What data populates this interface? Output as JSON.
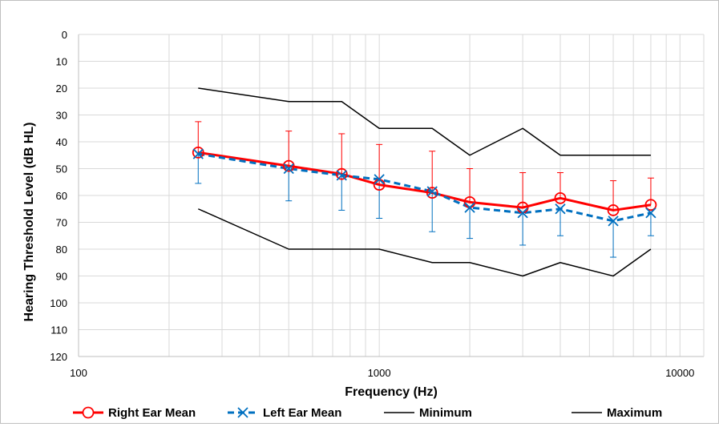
{
  "chart_data": {
    "type": "line",
    "title": "",
    "xlabel": "Frequency (Hz)",
    "ylabel": "Hearing Threshold Level (dB HL)",
    "x_scale": "log",
    "xlim": [
      100,
      12000
    ],
    "ylim": [
      120,
      0
    ],
    "y_axis_inverted": true,
    "grid": true,
    "legend_position": "bottom",
    "x_tick_labels": [
      "100",
      "1000",
      "10000"
    ],
    "x_tick_values": [
      100,
      1000,
      10000
    ],
    "y_tick_labels": [
      "0",
      "10",
      "20",
      "30",
      "40",
      "50",
      "60",
      "70",
      "80",
      "90",
      "100",
      "110",
      "120"
    ],
    "y_tick_values": [
      0,
      10,
      20,
      30,
      40,
      50,
      60,
      70,
      80,
      90,
      100,
      110,
      120
    ],
    "series": [
      {
        "name": "Right Ear Mean",
        "color": "#ff0000",
        "style": "solid",
        "marker": "circle",
        "x": [
          250,
          500,
          750,
          1000,
          1500,
          2000,
          3000,
          4000,
          6000,
          8000
        ],
        "y": [
          44,
          49,
          52,
          56,
          59,
          62.5,
          64.5,
          61,
          65.5,
          63.5
        ],
        "error_upper": [
          32.5,
          36,
          37,
          41,
          43.5,
          50,
          51.5,
          51.5,
          54.5,
          53.5
        ]
      },
      {
        "name": "Left Ear Mean",
        "color": "#0070c0",
        "style": "dashed",
        "marker": "x",
        "x": [
          250,
          500,
          750,
          1000,
          1500,
          2000,
          3000,
          4000,
          6000,
          8000
        ],
        "y": [
          44.5,
          50,
          52.5,
          54,
          58.5,
          64.5,
          66.5,
          65,
          69.5,
          66.5
        ],
        "error_lower": [
          55.5,
          62,
          65.5,
          68.5,
          73.5,
          76,
          78.5,
          75,
          83,
          75
        ]
      },
      {
        "name": "Minimum",
        "color": "#000000",
        "style": "solid",
        "x": [
          250,
          500,
          750,
          1000,
          1500,
          2000,
          3000,
          4000,
          6000,
          8000
        ],
        "y": [
          20,
          25,
          25,
          35,
          35,
          45,
          35,
          45,
          45,
          45
        ]
      },
      {
        "name": "Maximum",
        "color": "#000000",
        "style": "solid",
        "x": [
          250,
          500,
          750,
          1000,
          1500,
          2000,
          3000,
          4000,
          6000,
          8000
        ],
        "y": [
          65,
          80,
          80,
          80,
          85,
          85,
          90,
          85,
          90,
          80
        ]
      }
    ]
  }
}
